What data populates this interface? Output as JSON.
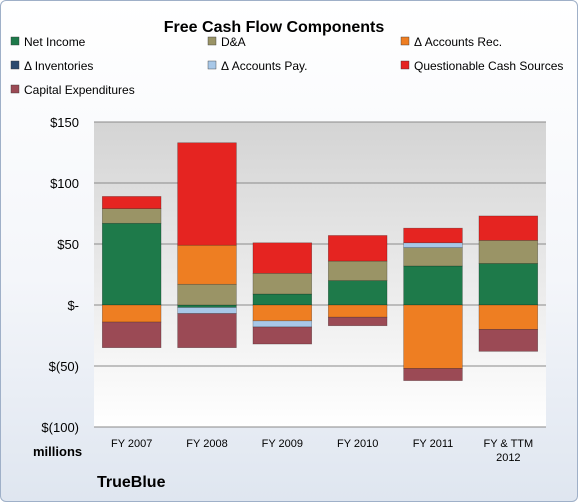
{
  "chart_data": {
    "type": "bar",
    "stacked": true,
    "title": "Free Cash Flow Components",
    "categories": [
      "FY 2007",
      "FY 2008",
      "FY 2009",
      "FY 2010",
      "FY 2011",
      "FY & TTM 2012"
    ],
    "ylim": [
      -100,
      150
    ],
    "yticks": [
      150,
      100,
      50,
      0,
      -50,
      -100
    ],
    "ytick_labels": [
      "$150",
      "$100",
      "$50",
      "$-",
      "$(50)",
      "$(100)"
    ],
    "unit_label": "millions",
    "legend_position": "top",
    "grid": true,
    "series": [
      {
        "name": "Net Income",
        "color": "#1e7a4a",
        "values": [
          67,
          -2,
          9,
          20,
          32,
          34
        ]
      },
      {
        "name": "D&A",
        "color": "#9a9466",
        "values": [
          12,
          17,
          17,
          16,
          15,
          19
        ]
      },
      {
        "name": "Δ Accounts Rec.",
        "color": "#ee7e22",
        "values": [
          -14,
          32,
          -13,
          -10,
          -52,
          -20
        ]
      },
      {
        "name": "Δ Inventories",
        "color": "#2c4a6e",
        "values": [
          0,
          0,
          0,
          0,
          0,
          0
        ]
      },
      {
        "name": "Δ Accounts Pay.",
        "color": "#a8c8e8",
        "values": [
          0,
          -5,
          -5,
          0,
          4,
          0
        ]
      },
      {
        "name": "Questionable Cash Sources",
        "color": "#e52421",
        "values": [
          10,
          84,
          25,
          21,
          12,
          20
        ]
      },
      {
        "name": "Capital Expenditures",
        "color": "#9b4a55",
        "values": [
          -21,
          -28,
          -14,
          -7,
          -10,
          -18
        ]
      }
    ]
  },
  "footer": {
    "company": "TrueBlue"
  }
}
